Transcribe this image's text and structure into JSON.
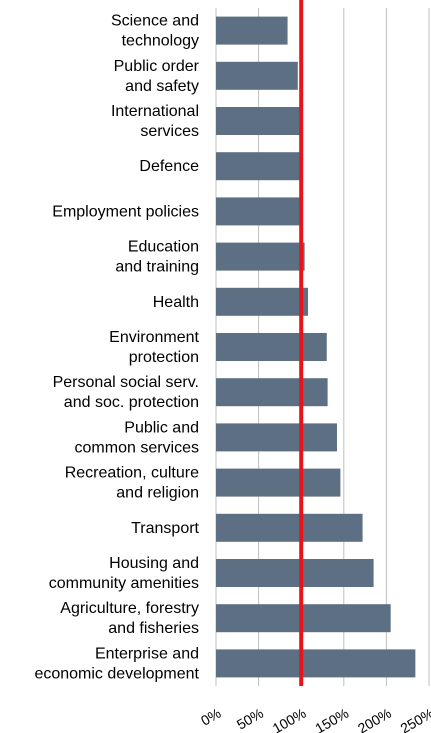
{
  "chart_data": {
    "type": "bar",
    "orientation": "horizontal",
    "categories": [
      [
        "Science and",
        "technology"
      ],
      [
        "Public order",
        "and safety"
      ],
      [
        "International",
        "services"
      ],
      [
        "Defence"
      ],
      [
        "Employment policies"
      ],
      [
        "Education",
        "and training"
      ],
      [
        "Health"
      ],
      [
        "Environment",
        "protection"
      ],
      [
        "Personal social serv.",
        "and soc. protection"
      ],
      [
        "Public and",
        "common services"
      ],
      [
        "Recreation, culture",
        "and religion"
      ],
      [
        "Transport"
      ],
      [
        "Housing and",
        "community amenities"
      ],
      [
        "Agriculture, forestry",
        "and fisheries"
      ],
      [
        "Enterprise and",
        "economic development"
      ]
    ],
    "values": [
      84,
      96,
      99,
      100,
      102,
      104,
      108,
      130,
      131,
      142,
      146,
      172,
      185,
      205,
      234
    ],
    "xlim": [
      0,
      250
    ],
    "xticks": [
      0,
      50,
      100,
      150,
      200,
      250
    ],
    "xtick_labels": [
      "0%",
      "50%",
      "100%",
      "150%",
      "200%",
      "250%"
    ],
    "reference_line": {
      "value": 100,
      "color": "#e8141b"
    },
    "bar_color": "#5d6f83",
    "grid": "vertical",
    "grid_color": "#bfbfbf",
    "title": "",
    "xlabel": "",
    "ylabel": ""
  }
}
